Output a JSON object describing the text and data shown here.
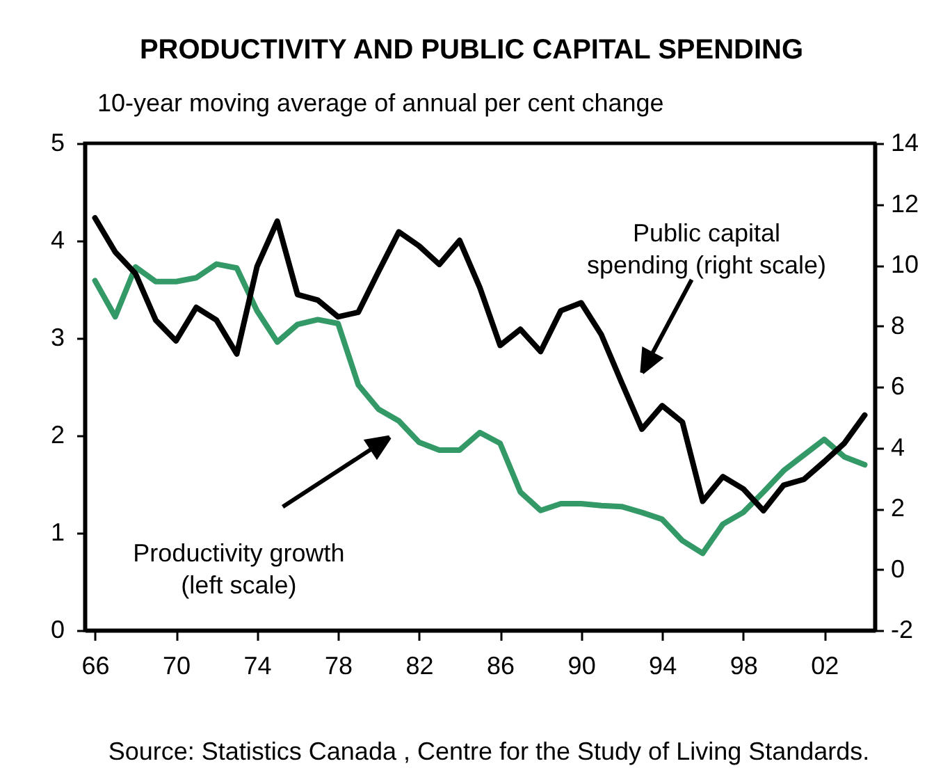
{
  "chart_data": {
    "type": "line",
    "title": "PRODUCTIVITY AND PUBLIC CAPITAL SPENDING",
    "subtitle": "10-year moving average of annual per cent change",
    "x": [
      1966,
      1967,
      1968,
      1969,
      1970,
      1971,
      1972,
      1973,
      1974,
      1975,
      1976,
      1977,
      1978,
      1979,
      1980,
      1981,
      1982,
      1983,
      1984,
      1985,
      1986,
      1987,
      1988,
      1989,
      1990,
      1991,
      1992,
      1993,
      1994,
      1995,
      1996,
      1997,
      1998,
      1999,
      2000,
      2001,
      2002,
      2003,
      2004
    ],
    "xlim": [
      1965.5,
      2004.5
    ],
    "xticks": [
      {
        "value": 1966,
        "label": "66"
      },
      {
        "value": 1970,
        "label": "70"
      },
      {
        "value": 1974,
        "label": "74"
      },
      {
        "value": 1978,
        "label": "78"
      },
      {
        "value": 1982,
        "label": "82"
      },
      {
        "value": 1986,
        "label": "86"
      },
      {
        "value": 1990,
        "label": "90"
      },
      {
        "value": 1994,
        "label": "94"
      },
      {
        "value": 1998,
        "label": "98"
      },
      {
        "value": 2002,
        "label": "02"
      }
    ],
    "ylim": [
      0,
      5
    ],
    "yticks": [
      0,
      1,
      2,
      3,
      4,
      5
    ],
    "y2lim": [
      -2,
      14
    ],
    "y2ticks": [
      -2,
      0,
      2,
      4,
      6,
      8,
      10,
      12,
      14
    ],
    "series": [
      {
        "color": "#339966",
        "values": [
          3.59,
          3.22,
          3.73,
          3.58,
          3.58,
          3.62,
          3.76,
          3.72,
          3.28,
          2.96,
          3.14,
          3.19,
          3.15,
          2.52,
          2.27,
          2.15,
          1.93,
          1.85,
          1.85,
          2.03,
          1.92,
          1.42,
          1.23,
          1.3,
          1.3,
          1.28,
          1.27,
          1.21,
          1.14,
          0.92,
          0.79,
          1.09,
          1.21,
          1.42,
          1.64,
          1.8,
          1.96,
          1.78,
          1.7
        ]
      },
      {
        "color": "#000000",
        "axis": "y2",
        "values": [
          11.55,
          10.43,
          9.72,
          8.19,
          7.51,
          8.61,
          8.19,
          7.08,
          9.95,
          11.44,
          9.03,
          8.85,
          8.3,
          8.45,
          9.79,
          11.09,
          10.63,
          10.02,
          10.81,
          9.26,
          7.36,
          7.89,
          7.16,
          8.5,
          8.76,
          7.71,
          6.14,
          4.61,
          5.38,
          4.84,
          2.24,
          3.05,
          2.65,
          1.93,
          2.77,
          2.96,
          3.54,
          4.15,
          5.07
        ]
      }
    ],
    "annotations": [
      "Productivity growth\n(left scale)",
      "Public capital\nspending (right scale)",
      "Source:  Statistics Canada , Centre for the Study of Living Standards."
    ]
  }
}
